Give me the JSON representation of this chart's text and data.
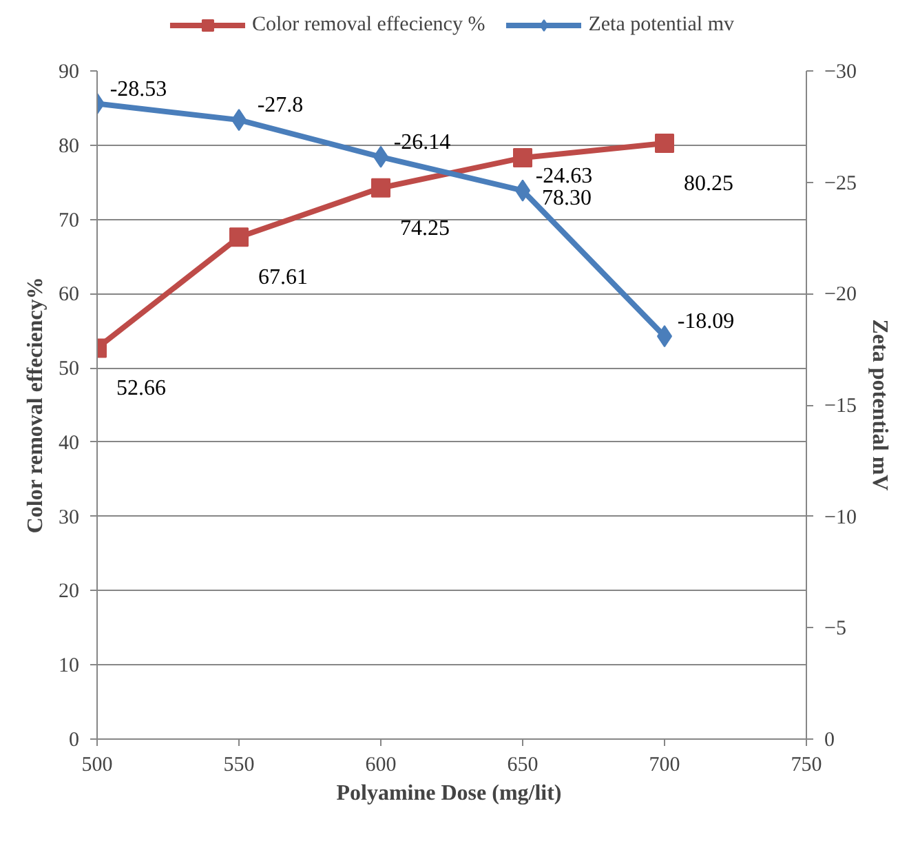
{
  "chart_data": {
    "type": "line",
    "xlabel": "Polyamine  Dose (mg/lit)",
    "ylabel": "Color removal effeciency%",
    "y2label": "Zeta potential mV",
    "x": [
      500,
      550,
      600,
      650,
      700
    ],
    "series": [
      {
        "name": "Color removal effeciency %",
        "color": "#be4b48",
        "marker": "square",
        "values": [
          52.66,
          67.61,
          74.25,
          78.3,
          80.25
        ],
        "value_labels": [
          "52.66",
          "67.61",
          "74.25",
          "78.30",
          "80.25"
        ]
      },
      {
        "name": "Zeta potential mv",
        "color": "#4a7ebb",
        "marker": "diamond",
        "axis": "y2",
        "values": [
          -28.53,
          -27.8,
          -26.14,
          -24.63,
          -18.09
        ],
        "value_labels": [
          "-28.53",
          "-27.8",
          "-26.14",
          "-24.63",
          "-18.09"
        ]
      }
    ],
    "xlim": [
      500,
      750
    ],
    "xticks": [
      500,
      550,
      600,
      650,
      700,
      750
    ],
    "ylim": [
      0,
      90
    ],
    "yticks": [
      0,
      10,
      20,
      30,
      40,
      50,
      60,
      70,
      80,
      90
    ],
    "y2lim": [
      0,
      -30
    ],
    "y2ticks": [
      0,
      -5,
      -10,
      -15,
      -20,
      -25,
      -30
    ],
    "grid": "y",
    "legend": "top"
  }
}
